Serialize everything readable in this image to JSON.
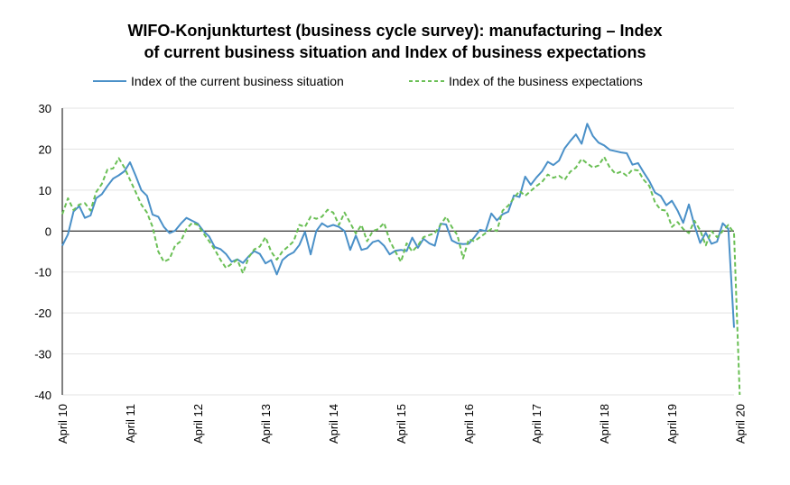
{
  "chart_data": {
    "type": "line",
    "title_line1": "WIFO-Konjunkturtest (business cycle survey): manufacturing – Index",
    "title_line2": "of current business situation and Index of business expectations",
    "ylim": [
      -40,
      30
    ],
    "yticks": [
      30,
      20,
      10,
      0,
      -10,
      -20,
      -30,
      -40
    ],
    "x_tick_labels": [
      "April 10",
      "April 11",
      "April 12",
      "April 13",
      "April 14",
      "April 15",
      "April 16",
      "April 17",
      "April 18",
      "April 19",
      "April 20"
    ],
    "x_start": "2010-04",
    "x_end": "2020-04",
    "grid": true,
    "legend_position": "top",
    "series": [
      {
        "name": "Index of the current business situation",
        "color": "#4a90c8",
        "style": "solid",
        "values": [
          -3.6,
          -0.8,
          4.8,
          6.1,
          3.2,
          3.8,
          8.0,
          9.0,
          11.0,
          12.8,
          13.6,
          14.6,
          16.8,
          13.5,
          10.0,
          8.6,
          4.0,
          3.5,
          1.0,
          -0.5,
          0.1,
          1.8,
          3.2,
          2.5,
          1.8,
          0.0,
          -1.3,
          -3.9,
          -4.4,
          -5.6,
          -7.5,
          -6.9,
          -7.8,
          -6.2,
          -4.9,
          -5.6,
          -7.9,
          -7.1,
          -10.6,
          -7.1,
          -5.9,
          -5.2,
          -3.4,
          -0.2,
          -5.7,
          0.0,
          1.9,
          1.0,
          1.5,
          1.0,
          0.0,
          -4.6,
          -1.1,
          -4.6,
          -4.2,
          -2.7,
          -2.3,
          -3.6,
          -5.7,
          -4.8,
          -4.6,
          -4.9,
          -1.6,
          -4.1,
          -1.9,
          -3.0,
          -3.6,
          1.8,
          1.6,
          -2.3,
          -3.0,
          -3.2,
          -3.1,
          -1.5,
          0.3,
          0.0,
          4.3,
          2.6,
          4.1,
          4.7,
          8.7,
          8.3,
          13.3,
          11.3,
          13.1,
          14.6,
          16.9,
          16.1,
          17.2,
          20.2,
          22.0,
          23.6,
          21.3,
          26.2,
          23.2,
          21.6,
          20.9,
          19.8,
          19.5,
          19.2,
          19.0,
          16.2,
          16.6,
          14.3,
          12.2,
          9.4,
          8.6,
          6.3,
          7.4,
          5.0,
          2.0,
          6.5,
          1.4,
          -2.9,
          -0.4,
          -3.1,
          -2.6,
          1.9,
          0.5,
          -23.6
        ]
      },
      {
        "name": "Index of the business expectations",
        "color": "#6abf55",
        "style": "dashed",
        "values": [
          4.1,
          8.0,
          5.1,
          6.5,
          6.8,
          5.0,
          9.5,
          11.5,
          15.0,
          15.3,
          17.8,
          15.5,
          12.5,
          9.5,
          6.5,
          4.5,
          1.0,
          -5.0,
          -7.5,
          -6.8,
          -3.5,
          -2.5,
          0.5,
          2.0,
          1.5,
          -0.5,
          -2.5,
          -4.5,
          -7.0,
          -9.0,
          -8.0,
          -7.0,
          -10.3,
          -6.5,
          -4.5,
          -3.8,
          -1.5,
          -5.0,
          -7.0,
          -5.0,
          -3.8,
          -2.5,
          1.5,
          1.0,
          3.5,
          3.0,
          3.5,
          5.2,
          4.5,
          1.5,
          4.5,
          2.0,
          -0.6,
          1.5,
          -2.5,
          0.0,
          0.5,
          2.0,
          -2.3,
          -5.0,
          -7.5,
          -3.0,
          -5.0,
          -3.5,
          -1.5,
          -1.0,
          -0.5,
          1.5,
          3.5,
          1.0,
          -1.0,
          -6.7,
          -2.0,
          -2.5,
          -1.5,
          -0.5,
          0.5,
          0.0,
          5.0,
          6.2,
          8.0,
          9.8,
          8.6,
          9.8,
          11.0,
          12.0,
          13.8,
          13.0,
          13.5,
          12.5,
          14.5,
          15.5,
          17.6,
          16.5,
          15.5,
          16.0,
          18.1,
          15.5,
          14.0,
          14.5,
          13.5,
          15.0,
          14.8,
          12.5,
          11.0,
          7.0,
          5.2,
          5.0,
          1.0,
          2.2,
          0.5,
          -0.5,
          2.5,
          0.2,
          -3.5,
          0.0,
          -1.5,
          0.0,
          1.5,
          -0.5,
          -40.0
        ]
      }
    ]
  }
}
